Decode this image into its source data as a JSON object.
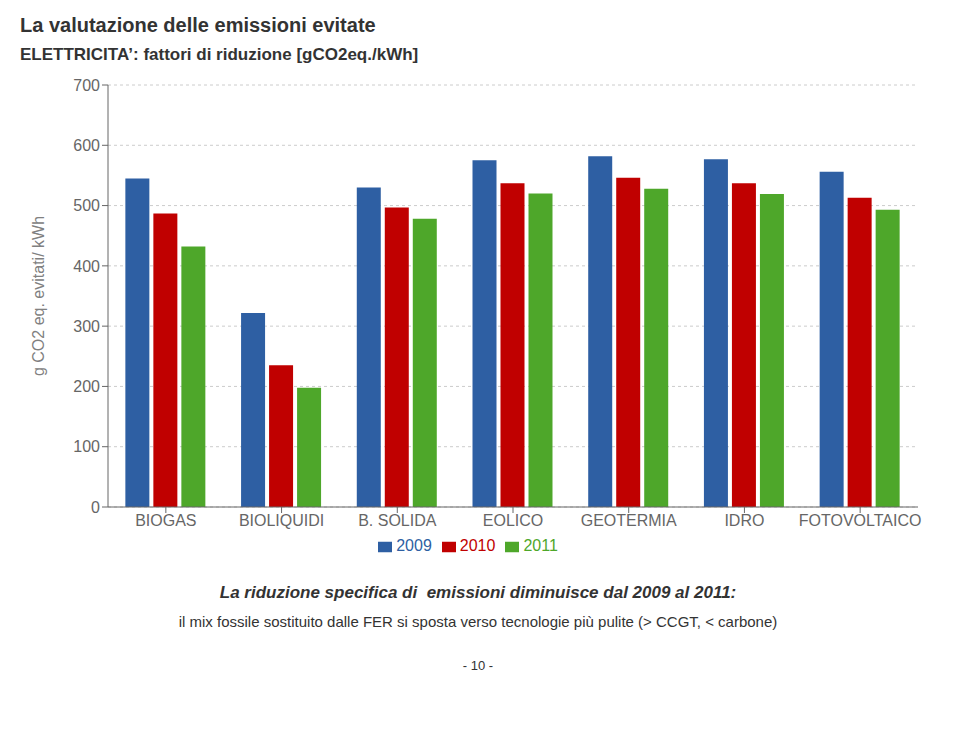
{
  "chart_data": {
    "type": "bar",
    "title": "La valutazione delle emissioni evitate",
    "subtitle": "ELETTRICITA’: fattori di riduzione [gCO2eq./kWh]",
    "y_label": "g CO2 eq. evitati/ kWh",
    "categories": [
      "BIOGAS",
      "BIOLIQUIDI",
      "B. SOLIDA",
      "EOLICO",
      "GEOTERMIA",
      "IDRO",
      "FOTOVOLTAICO"
    ],
    "series": [
      {
        "name": "2009",
        "color": "#2E5FA3",
        "values": [
          545,
          322,
          530,
          575,
          582,
          577,
          556
        ]
      },
      {
        "name": "2010",
        "color": "#C00000",
        "values": [
          487,
          235,
          497,
          537,
          546,
          537,
          513
        ]
      },
      {
        "name": "2011",
        "color": "#4EA72A",
        "values": [
          432,
          198,
          478,
          520,
          528,
          519,
          493
        ]
      }
    ],
    "ylim": [
      0,
      700
    ],
    "yticks": [
      0,
      100,
      200,
      300,
      400,
      500,
      600,
      700
    ],
    "grid": true,
    "legend": "bottom",
    "annotations": [
      "La riduzione specifica di  emissioni diminuisce dal 2009 al 2011:",
      "il mix fossile sostituito dalle FER si sposta verso tecnologie più pulite (> CCGT, < carbone)",
      "- 10 -"
    ]
  }
}
